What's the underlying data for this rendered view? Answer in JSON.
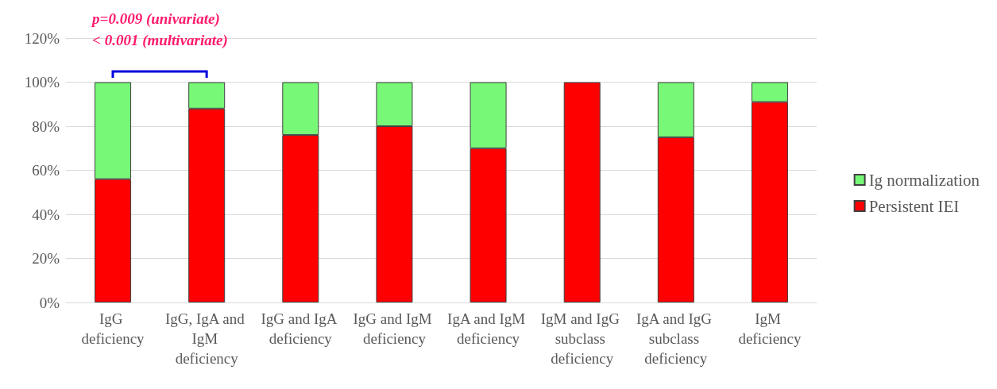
{
  "chart_data": {
    "type": "bar",
    "stacked": true,
    "categories": [
      "IgG deficiency",
      "IgG, IgA and IgM deficiency",
      "IgG and IgA deficiency",
      "IgG and IgM deficiency",
      "IgA and IgM deficiency",
      "IgM and IgG subclass deficiency",
      "IgA and IgG subclass deficiency",
      "IgM deficiency"
    ],
    "series": [
      {
        "name": "Persistent IEI",
        "color": "#ff0000",
        "values": [
          56,
          88,
          76,
          80,
          70,
          100,
          75,
          91
        ]
      },
      {
        "name": "Ig normalization",
        "color": "#77f977",
        "values": [
          44,
          12,
          24,
          20,
          30,
          0,
          25,
          9
        ]
      }
    ],
    "ylim": [
      0,
      120
    ],
    "yticks": [
      {
        "value": 0,
        "label": "0%"
      },
      {
        "value": 20,
        "label": "20%"
      },
      {
        "value": 40,
        "label": "40%"
      },
      {
        "value": 60,
        "label": "60%"
      },
      {
        "value": 80,
        "label": "80%"
      },
      {
        "value": 100,
        "label": "100%"
      },
      {
        "value": 120,
        "label": "120%"
      }
    ],
    "grid": "y",
    "legend": "right",
    "annotations": [
      "p=0.009 (univariate)\n< 0.001 (multivariate)"
    ]
  }
}
